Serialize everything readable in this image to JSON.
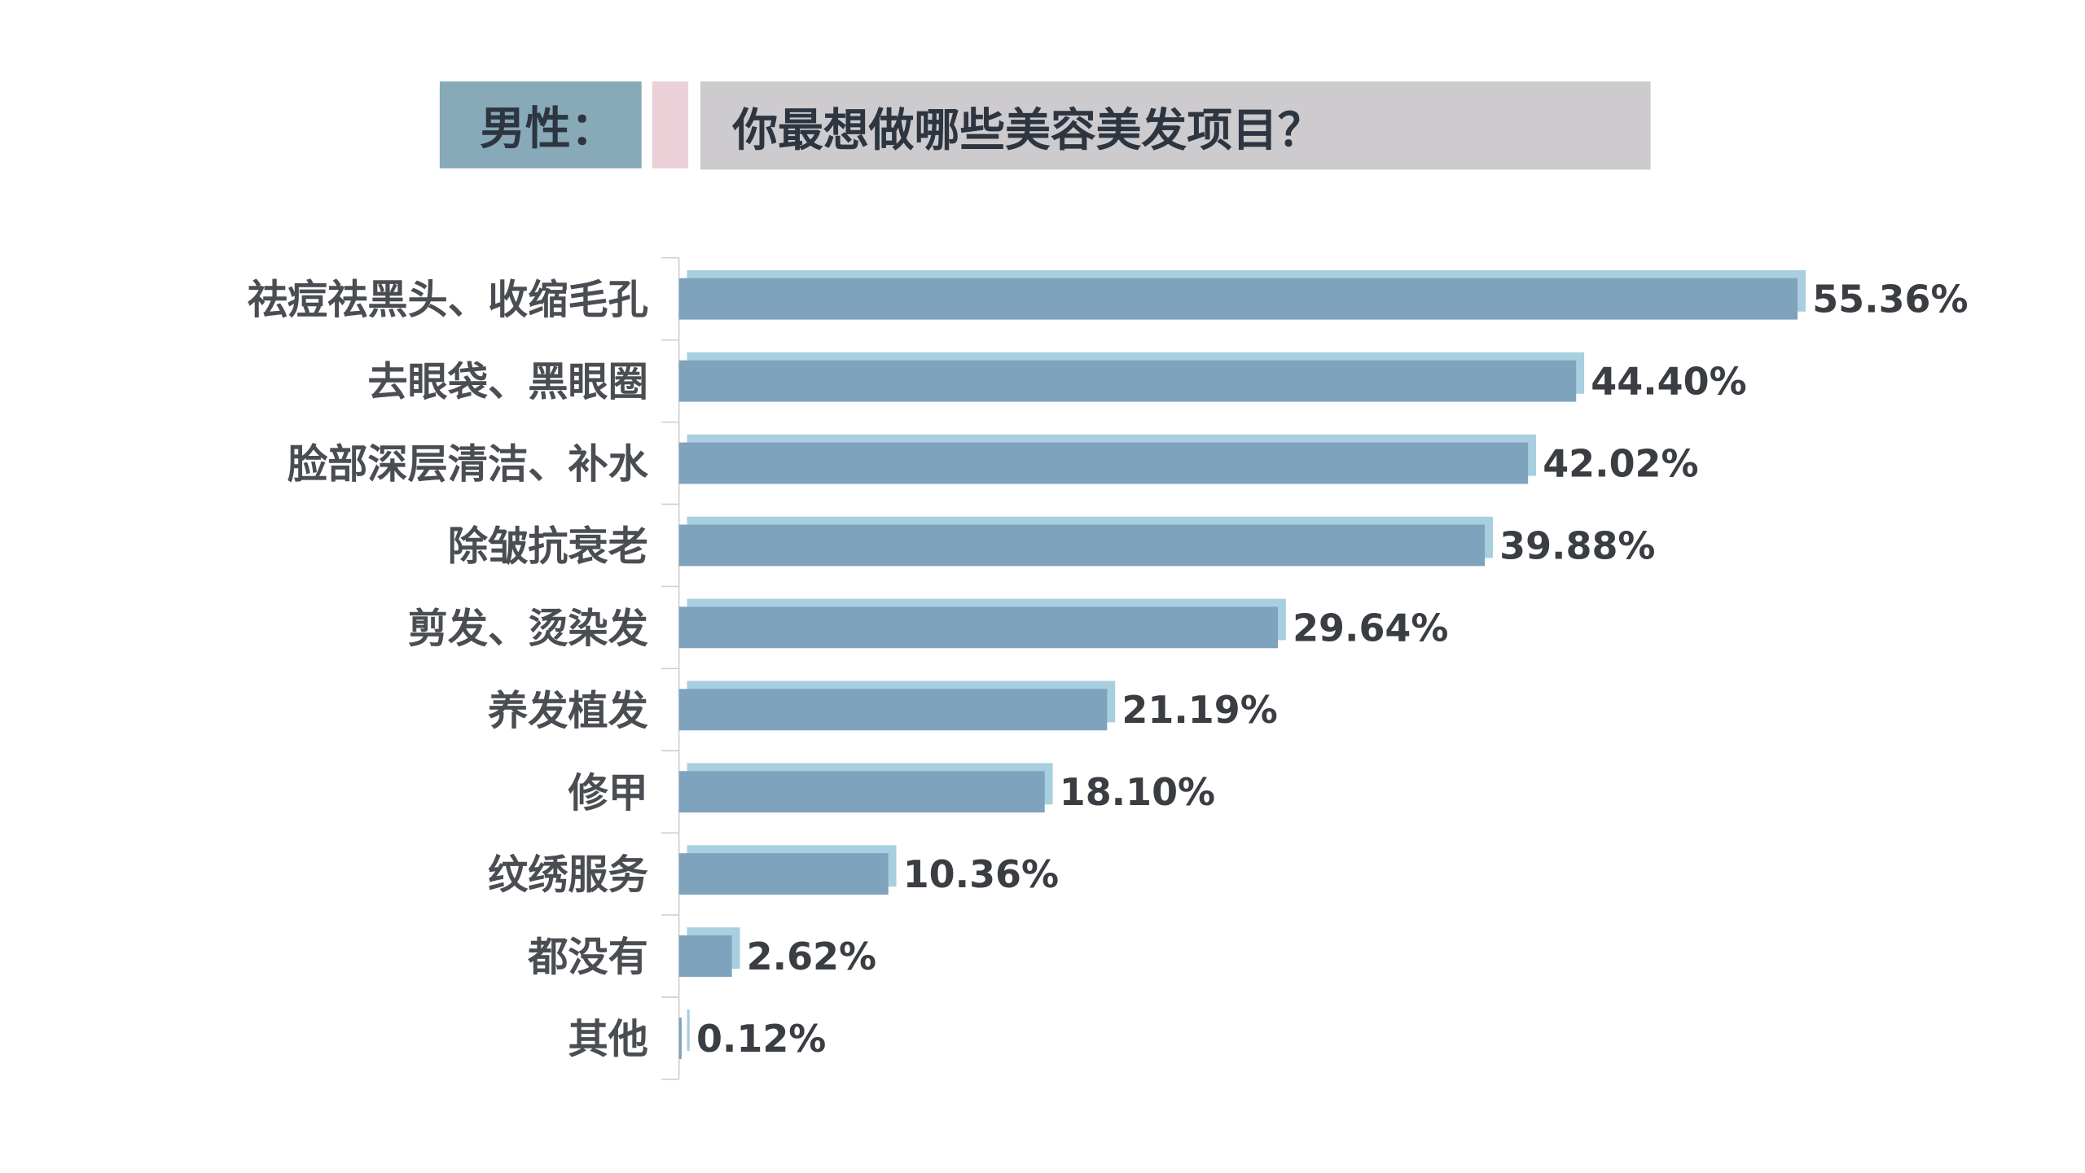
{
  "header": {
    "gender_label": "男性：",
    "question": "你最想做哪些美容美发项目？"
  },
  "colors": {
    "bar": "#7fa2bd",
    "bar_shadow": "#a8cfe0",
    "gender_box": "#87a9b8",
    "accent_strip": "#ebd0d8",
    "question_box": "#cdcbce"
  },
  "chart_data": {
    "type": "bar",
    "orientation": "horizontal",
    "title": "你最想做哪些美容美发项目？",
    "categories": [
      "祛痘祛黑头、收缩毛孔",
      "去眼袋、黑眼圈",
      "脸部深层清洁、补水",
      "除皱抗衰老",
      "剪发、烫染发",
      "养发植发",
      "修甲",
      "纹绣服务",
      "都没有",
      "其他"
    ],
    "values": [
      55.36,
      44.4,
      42.02,
      39.88,
      29.64,
      21.19,
      18.1,
      10.36,
      2.62,
      0.12
    ],
    "data_labels": [
      "55.36%",
      "44.40%",
      "42.02%",
      "39.88%",
      "29.64%",
      "21.19%",
      "18.10%",
      "10.36%",
      "2.62%",
      "0.12%"
    ],
    "unit": "%",
    "xlim": [
      0,
      55.36
    ],
    "grid": false,
    "legend": "none"
  }
}
